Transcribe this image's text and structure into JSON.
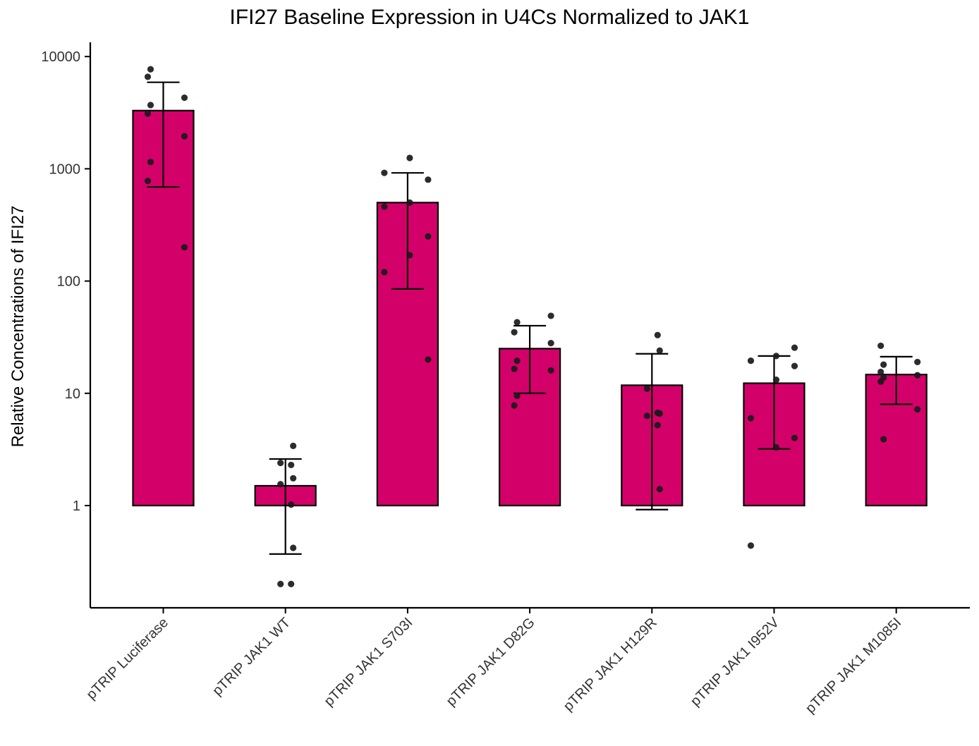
{
  "chart_data": {
    "type": "bar",
    "title": "IFI27 Baseline Expression in U4Cs Normalized to JAK1",
    "xlabel": "",
    "ylabel": "Relative Concentrations of IFI27",
    "yscale": "log10",
    "ylim": [
      0.16,
      12500
    ],
    "yticks": [
      1,
      10,
      100,
      1000,
      10000
    ],
    "ytick_labels": [
      "1",
      "10",
      "100",
      "1000",
      "10000"
    ],
    "bar_base": 1,
    "grid": false,
    "categories": [
      "pTRIP Luciferase",
      "pTRIP JAK1 WT",
      "pTRIP JAK1 S703I",
      "pTRIP JAK1 D82G",
      "pTRIP JAK1 H129R",
      "pTRIP JAK1 I952V",
      "pTRIP JAK1 M1085I"
    ],
    "series": [
      {
        "values": [
          3300,
          1.5,
          500,
          25,
          11.8,
          12.3,
          14.7
        ],
        "error_low": [
          690,
          0.37,
          85,
          10,
          0.92,
          3.2,
          8
        ],
        "error_high": [
          5900,
          2.6,
          920,
          40,
          22.5,
          21.5,
          21.2
        ],
        "points": [
          [
            7700,
            6600,
            4300,
            3700,
            3100,
            1950,
            1150,
            780,
            200
          ],
          [
            3.4,
            2.4,
            2.3,
            1.75,
            1.55,
            1.02,
            0.42,
            0.2,
            0.2
          ],
          [
            1250,
            920,
            800,
            500,
            460,
            250,
            170,
            120,
            20
          ],
          [
            49,
            43,
            35,
            28,
            19.5,
            16.5,
            16,
            9.5,
            7.8
          ],
          [
            33,
            24,
            11,
            6.7,
            6.6,
            6.3,
            5.2,
            1.4
          ],
          [
            25.5,
            21.5,
            19.5,
            17.5,
            13.2,
            6,
            4,
            3.3,
            0.44
          ],
          [
            26.5,
            19,
            18,
            15.5,
            14.5,
            13.8,
            12.7,
            7.2,
            3.9
          ]
        ]
      }
    ],
    "colors": {
      "bar_fill": "#d4006a",
      "bar_stroke": "#000000",
      "point": "#1a1a1a",
      "axis": "#000000"
    }
  }
}
